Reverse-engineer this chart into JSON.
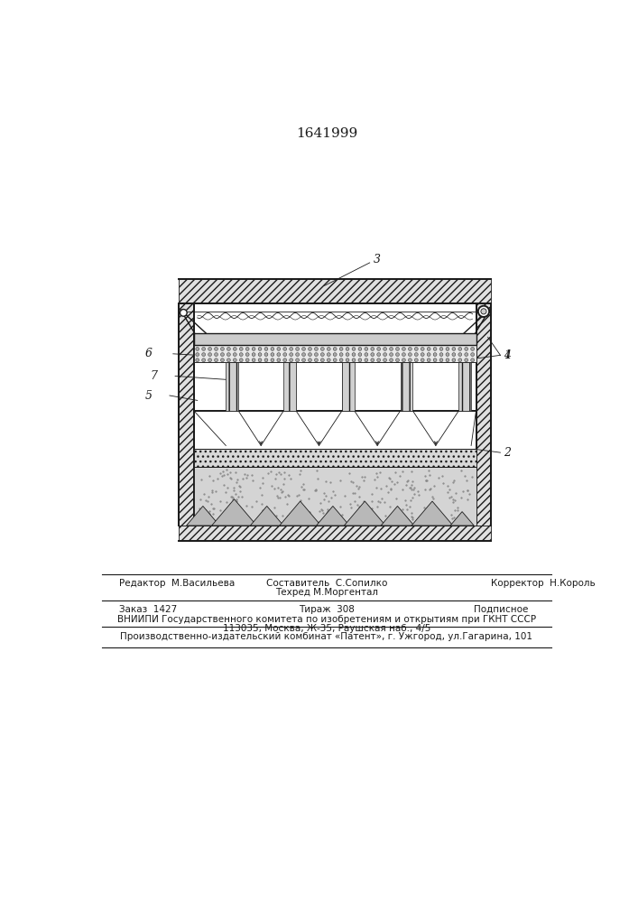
{
  "patent_number": "1641999",
  "line_color": "#1a1a1a",
  "footer": {
    "line1_left": "Редактор  М.Васильева",
    "line1_center_a": "Составитель  С.Сопилко",
    "line1_center_b": "Техред М.Моргентал",
    "line1_right": "Корректор  Н.Король",
    "line2_left": "Заказ  1427",
    "line2_center": "Тираж  308",
    "line2_right": "Подписное",
    "line3": "ВНИИПИ Государственного комитета по изобретениям и открытиям при ГКНТ СССР",
    "line4": "113035, Москва, Ж-35, Раушская наб., 4/5",
    "line5": "Производственно-издательский комбинат «Патент», г. Ужгород, ул.Гагарина, 101"
  }
}
